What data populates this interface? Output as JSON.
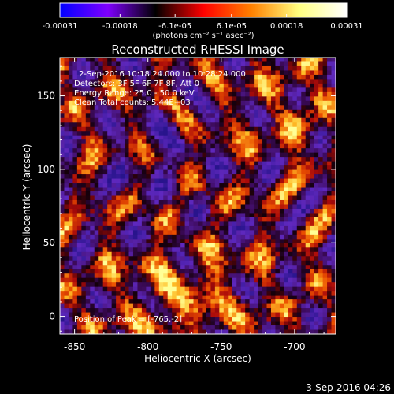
{
  "colorbar": {
    "tick_labels": [
      "-0.00031",
      "-0.00018",
      "-6.1e-05",
      "6.1e-05",
      "0.00018",
      "0.00031"
    ],
    "tick_values": [
      -0.00031,
      -0.00018,
      -6.1e-05,
      6.1e-05,
      0.00018,
      0.00031
    ],
    "range": [
      -0.00031,
      0.00031
    ],
    "unit_label": "(photons cm⁻² s⁻¹ asec⁻²)",
    "colormap": [
      "#0000ff",
      "#7f00ff",
      "#000000",
      "#ff0000",
      "#ff8000",
      "#ffff80",
      "#ffffff"
    ]
  },
  "annotations": {
    "time_range": "2-Sep-2016 10:18:24.000 to 10:28:24.000",
    "detectors": "Detectors: 3F 5F 6F 7F 8F, Att 0",
    "energy": "Energy Range: 25.0 - 50.0 keV",
    "method": "Clean     Total counts: 5.44E+03",
    "peak": "Position of Peak = [-765,-2]"
  },
  "footer": {
    "timestamp": "3-Sep-2016 04:26"
  },
  "chart_data": {
    "type": "heatmap",
    "title": "Reconstructed RHESSI Image",
    "xlabel": "Heliocentric X (arcsec)",
    "ylabel": "Heliocentric Y (arcsec)",
    "xlim": [
      -860,
      -672
    ],
    "ylim": [
      -12,
      176
    ],
    "xticks": [
      -850,
      -800,
      -750,
      -700
    ],
    "xtick_labels": [
      "-850",
      "-800",
      "-750",
      "-700"
    ],
    "yticks": [
      0,
      50,
      100,
      150
    ],
    "ytick_labels": [
      "0",
      "50",
      "100",
      "150"
    ],
    "grid": false,
    "pixels_per_side": 64,
    "peak_position": [
      -765,
      -2
    ],
    "colors": {
      "background_low": "#5a1cb0",
      "mid": "#c01010",
      "high": "#ffff60"
    }
  }
}
